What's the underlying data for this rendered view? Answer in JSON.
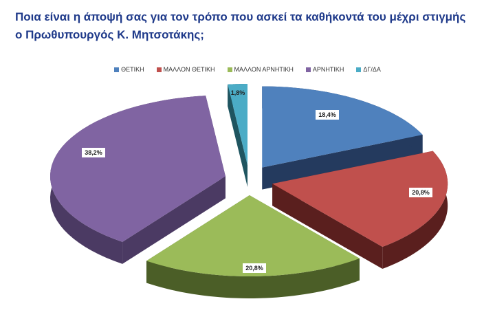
{
  "chart_data": {
    "type": "pie",
    "title": "Ποια είναι η άποψή σας για τον τρόπο που ασκεί τα καθήκοντά του μέχρι στιγμής ο Πρωθυπουργός Κ. Μητσοτάκης;",
    "title_lines": [
      "Ποια είναι η άποψή σας για τον τρόπο που ασκεί τα καθήκοντά του μέχρι στιγμής",
      "ο Πρωθυπουργός Κ. Μητσοτάκης;"
    ],
    "style": "3d-exploded",
    "legend_position": "top",
    "categories": [
      "ΘΕΤΙΚΗ",
      "ΜΑΛΛΟΝ ΘΕΤΙΚΗ",
      "ΜΑΛΛΟΝ ΑΡΝΗΤΙΚΗ",
      "ΑΡΝΗΤΙΚΗ",
      "ΔΓ/ΔΑ"
    ],
    "values": [
      18.4,
      20.8,
      20.8,
      38.2,
      1.8
    ],
    "data_labels": [
      "18,4%",
      "20,8%",
      "20,8%",
      "38,2%",
      "1,8%"
    ],
    "colors": [
      "#4f81bd",
      "#c0504d",
      "#9bbb59",
      "#8064a2",
      "#4bacc6"
    ],
    "side_colors": [
      "#243a5e",
      "#5a1f1e",
      "#4b5e27",
      "#4b3a63",
      "#1f5560"
    ]
  }
}
